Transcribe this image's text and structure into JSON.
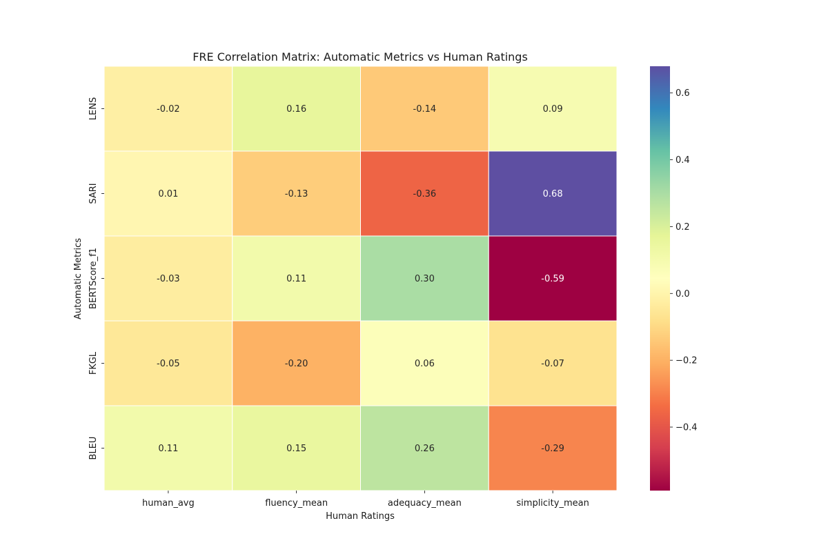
{
  "chart_data": {
    "type": "heatmap",
    "title": "FRE Correlation Matrix: Automatic Metrics vs Human Ratings",
    "xlabel": "Human Ratings",
    "ylabel": "Automatic Metrics",
    "x_categories": [
      "human_avg",
      "fluency_mean",
      "adequacy_mean",
      "simplicity_mean"
    ],
    "y_categories": [
      "LENS",
      "SARI",
      "BERTScore_f1",
      "FKGL",
      "BLEU"
    ],
    "values": [
      [
        -0.02,
        0.16,
        -0.14,
        0.09
      ],
      [
        0.01,
        -0.13,
        -0.36,
        0.68
      ],
      [
        -0.03,
        0.11,
        0.3,
        -0.59
      ],
      [
        -0.05,
        -0.2,
        0.06,
        -0.07
      ],
      [
        0.11,
        0.15,
        0.26,
        -0.29
      ]
    ],
    "annotations": [
      [
        "-0.02",
        "0.16",
        "-0.14",
        "0.09"
      ],
      [
        "0.01",
        "-0.13",
        "-0.36",
        "0.68"
      ],
      [
        "-0.03",
        "0.11",
        "0.30",
        "-0.59"
      ],
      [
        "-0.05",
        "-0.20",
        "0.06",
        "-0.07"
      ],
      [
        "0.11",
        "0.15",
        "0.26",
        "-0.29"
      ]
    ],
    "colormap": "Spectral",
    "vmin": -0.59,
    "vmax": 0.68,
    "colorbar_ticks": [
      0.6,
      0.4,
      0.2,
      0.0,
      -0.2,
      -0.4
    ],
    "colorbar_tick_labels": [
      "0.6",
      "0.4",
      "0.2",
      "0.0",
      "−0.2",
      "−0.4"
    ],
    "grid": false
  }
}
